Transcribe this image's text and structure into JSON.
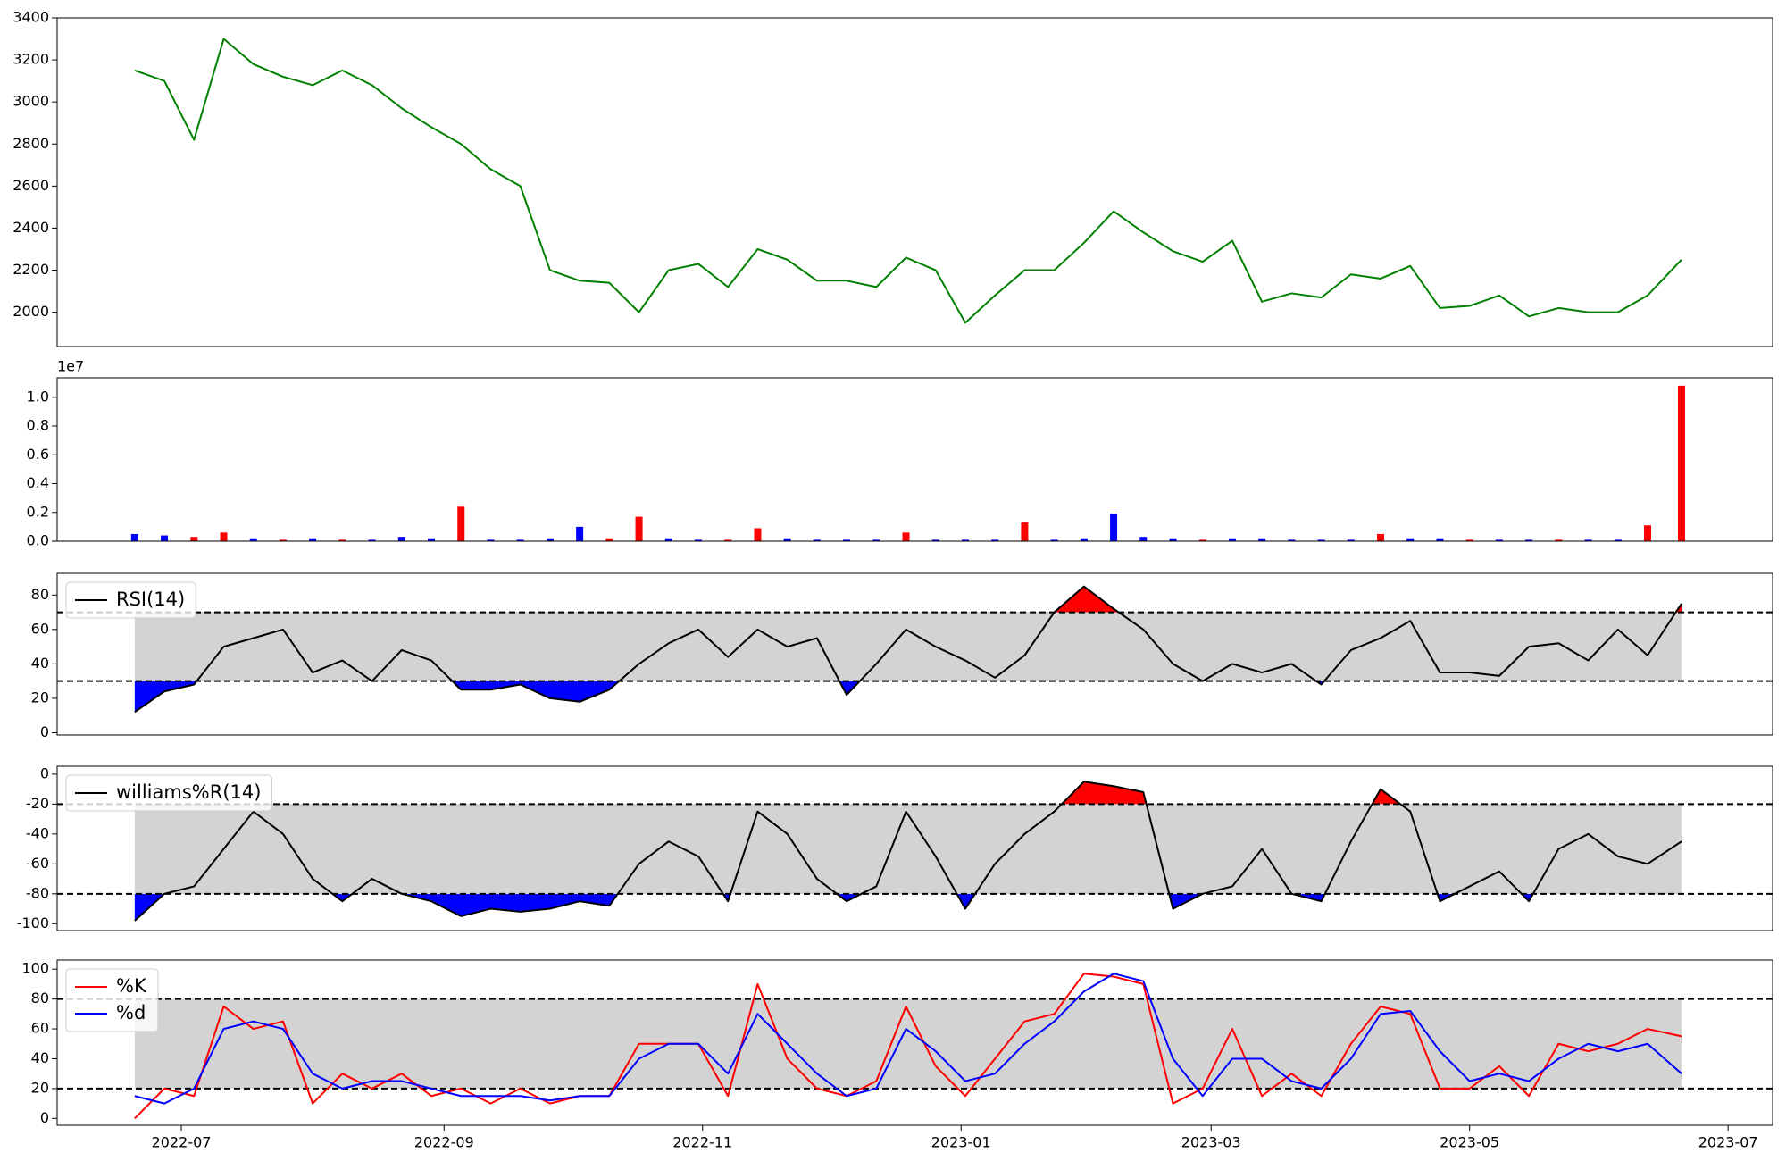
{
  "chart_data": [
    {
      "type": "line",
      "x": [
        -11,
        -4,
        3,
        10,
        17,
        24,
        31,
        38,
        45,
        52,
        59,
        66,
        73,
        80,
        87,
        94,
        101,
        108,
        115,
        122,
        129,
        136,
        143,
        150,
        157,
        164,
        171,
        178,
        185,
        192,
        199,
        206,
        213,
        220,
        227,
        234,
        241,
        248,
        255,
        262,
        269,
        276,
        283,
        290,
        297,
        304,
        311,
        318,
        325,
        332,
        339,
        346,
        354
      ],
      "series": [
        {
          "color": "#008000",
          "values": [
            3150,
            3100,
            2820,
            3300,
            3180,
            3120,
            3080,
            3150,
            3080,
            2970,
            2880,
            2800,
            2680,
            2600,
            2200,
            2150,
            2140,
            2000,
            2200,
            2230,
            2120,
            2300,
            2250,
            2150,
            2150,
            2120,
            2260,
            2200,
            1950,
            2080,
            2200,
            2200,
            2330,
            2480,
            2380,
            2290,
            2240,
            2340,
            2050,
            2090,
            2070,
            2180,
            2160,
            2220,
            2020,
            2030,
            2080,
            1980,
            2020,
            2000,
            2000,
            2080,
            2250
          ]
        }
      ],
      "xlim": [
        -29.3,
        375.5
      ],
      "ylim": [
        1837,
        3400
      ],
      "yticks": [
        2000,
        2200,
        2400,
        2600,
        2800,
        3000,
        3200,
        3400
      ]
    },
    {
      "type": "bar",
      "x": [
        -11,
        -4,
        3,
        10,
        17,
        24,
        31,
        38,
        45,
        52,
        59,
        66,
        73,
        80,
        87,
        94,
        101,
        108,
        115,
        122,
        129,
        136,
        143,
        150,
        157,
        164,
        171,
        178,
        185,
        192,
        199,
        206,
        213,
        220,
        227,
        234,
        241,
        248,
        255,
        262,
        269,
        276,
        283,
        290,
        297,
        304,
        311,
        318,
        325,
        332,
        339,
        346,
        354
      ],
      "values": [
        500000,
        400000,
        300000,
        600000,
        200000,
        100000,
        200000,
        100000,
        100000,
        300000,
        200000,
        2400000,
        100000,
        100000,
        200000,
        1000000,
        200000,
        1700000,
        200000,
        100000,
        100000,
        900000,
        200000,
        100000,
        100000,
        100000,
        600000,
        100000,
        100000,
        100000,
        1300000,
        100000,
        200000,
        1900000,
        300000,
        200000,
        100000,
        200000,
        200000,
        100000,
        100000,
        100000,
        500000,
        200000,
        200000,
        100000,
        100000,
        100000,
        100000,
        100000,
        100000,
        1100000,
        10800000
      ],
      "colors": [
        "blue",
        "blue",
        "red",
        "red",
        "blue",
        "red",
        "blue",
        "red",
        "blue",
        "blue",
        "blue",
        "red",
        "blue",
        "blue",
        "blue",
        "blue",
        "red",
        "red",
        "blue",
        "blue",
        "red",
        "red",
        "blue",
        "blue",
        "blue",
        "blue",
        "red",
        "blue",
        "blue",
        "blue",
        "red",
        "blue",
        "blue",
        "blue",
        "blue",
        "blue",
        "red",
        "blue",
        "blue",
        "blue",
        "blue",
        "blue",
        "red",
        "blue",
        "blue",
        "red",
        "blue",
        "blue",
        "red",
        "blue",
        "blue",
        "red",
        "red"
      ],
      "offset_label": "1e7",
      "xlim": [
        -29.3,
        375.5
      ],
      "ylim": [
        0,
        11350000
      ],
      "yticks": [
        {
          "value": 0,
          "label": "0.0"
        },
        {
          "value": 2000000,
          "label": "0.2"
        },
        {
          "value": 4000000,
          "label": "0.4"
        },
        {
          "value": 6000000,
          "label": "0.6"
        },
        {
          "value": 8000000,
          "label": "0.8"
        },
        {
          "value": 10000000,
          "label": "1.0"
        }
      ]
    },
    {
      "type": "line",
      "x": [
        -11,
        -4,
        3,
        10,
        17,
        24,
        31,
        38,
        45,
        52,
        59,
        66,
        73,
        80,
        87,
        94,
        101,
        108,
        115,
        122,
        129,
        136,
        143,
        150,
        157,
        164,
        171,
        178,
        185,
        192,
        199,
        206,
        213,
        220,
        227,
        234,
        241,
        248,
        255,
        262,
        269,
        276,
        283,
        290,
        297,
        304,
        311,
        318,
        325,
        332,
        339,
        346,
        354
      ],
      "series": [
        {
          "name": "RSI(14)",
          "color": "black",
          "values": [
            12,
            24,
            28,
            50,
            55,
            60,
            35,
            42,
            30,
            48,
            42,
            25,
            25,
            28,
            20,
            18,
            25,
            40,
            52,
            60,
            44,
            60,
            50,
            55,
            22,
            40,
            60,
            50,
            42,
            32,
            45,
            70,
            85,
            72,
            60,
            40,
            30,
            40,
            35,
            40,
            28,
            48,
            55,
            65,
            35,
            35,
            33,
            50,
            52,
            42,
            60,
            45,
            75
          ]
        }
      ],
      "hlines": [
        70,
        30
      ],
      "band_color": "#d3d3d3",
      "over_color": "red",
      "under_color": "blue",
      "legend": "upper left",
      "xlim": [
        -29.3,
        375.5
      ],
      "ylim": [
        -1.3,
        92.6
      ],
      "yticks": [
        0,
        20,
        40,
        60,
        80
      ]
    },
    {
      "type": "line",
      "x": [
        -11,
        -4,
        3,
        10,
        17,
        24,
        31,
        38,
        45,
        52,
        59,
        66,
        73,
        80,
        87,
        94,
        101,
        108,
        115,
        122,
        129,
        136,
        143,
        150,
        157,
        164,
        171,
        178,
        185,
        192,
        199,
        206,
        213,
        220,
        227,
        234,
        241,
        248,
        255,
        262,
        269,
        276,
        283,
        290,
        297,
        304,
        311,
        318,
        325,
        332,
        339,
        346,
        354
      ],
      "series": [
        {
          "name": "williams%R(14)",
          "color": "black",
          "values": [
            -98,
            -80,
            -75,
            -50,
            -25,
            -40,
            -70,
            -85,
            -70,
            -80,
            -85,
            -95,
            -90,
            -92,
            -90,
            -85,
            -88,
            -60,
            -45,
            -55,
            -85,
            -25,
            -40,
            -70,
            -85,
            -75,
            -25,
            -55,
            -90,
            -60,
            -40,
            -25,
            -5,
            -8,
            -12,
            -90,
            -80,
            -75,
            -50,
            -80,
            -85,
            -45,
            -10,
            -25,
            -85,
            -75,
            -65,
            -85,
            -50,
            -40,
            -55,
            -60,
            -45
          ]
        }
      ],
      "hlines": [
        -20,
        -80
      ],
      "band_color": "#d3d3d3",
      "over_color": "red",
      "under_color": "blue",
      "legend": "upper left",
      "xlim": [
        -29.3,
        375.5
      ],
      "ylim": [
        -104.6,
        5.3
      ],
      "yticks": [
        -100,
        -80,
        -60,
        -40,
        -20,
        0
      ]
    },
    {
      "type": "line",
      "x": [
        -11,
        -4,
        3,
        10,
        17,
        24,
        31,
        38,
        45,
        52,
        59,
        66,
        73,
        80,
        87,
        94,
        101,
        108,
        115,
        122,
        129,
        136,
        143,
        150,
        157,
        164,
        171,
        178,
        185,
        192,
        199,
        206,
        213,
        220,
        227,
        234,
        241,
        248,
        255,
        262,
        269,
        276,
        283,
        290,
        297,
        304,
        311,
        318,
        325,
        332,
        339,
        346,
        354
      ],
      "series": [
        {
          "name": "%K",
          "color": "red",
          "values": [
            0,
            20,
            15,
            75,
            60,
            65,
            10,
            30,
            20,
            30,
            15,
            20,
            10,
            20,
            10,
            15,
            15,
            50,
            50,
            50,
            15,
            90,
            40,
            20,
            15,
            25,
            75,
            35,
            15,
            40,
            65,
            70,
            97,
            95,
            90,
            10,
            20,
            60,
            15,
            30,
            15,
            50,
            75,
            70,
            20,
            20,
            35,
            15,
            50,
            45,
            50,
            60,
            55
          ]
        },
        {
          "name": "%d",
          "color": "blue",
          "values": [
            15,
            10,
            20,
            60,
            65,
            60,
            30,
            20,
            25,
            25,
            20,
            15,
            15,
            15,
            12,
            15,
            15,
            40,
            50,
            50,
            30,
            70,
            50,
            30,
            15,
            20,
            60,
            45,
            25,
            30,
            50,
            65,
            85,
            97,
            92,
            40,
            15,
            40,
            40,
            25,
            20,
            40,
            70,
            72,
            45,
            25,
            30,
            25,
            40,
            50,
            45,
            50,
            30
          ]
        }
      ],
      "hlines": [
        80,
        20
      ],
      "band_color": "#d3d3d3",
      "legend": "upper left",
      "xlim": [
        -29.3,
        375.5
      ],
      "ylim": [
        -4.6,
        106.1
      ],
      "yticks": [
        0,
        20,
        40,
        60,
        80,
        100
      ],
      "xticks": [
        {
          "value": 0,
          "label": "2022-07"
        },
        {
          "value": 62,
          "label": "2022-09"
        },
        {
          "value": 123,
          "label": "2022-11"
        },
        {
          "value": 184,
          "label": "2023-01"
        },
        {
          "value": 243,
          "label": "2023-03"
        },
        {
          "value": 304,
          "label": "2023-05"
        },
        {
          "value": 365,
          "label": "2023-07"
        }
      ]
    }
  ]
}
